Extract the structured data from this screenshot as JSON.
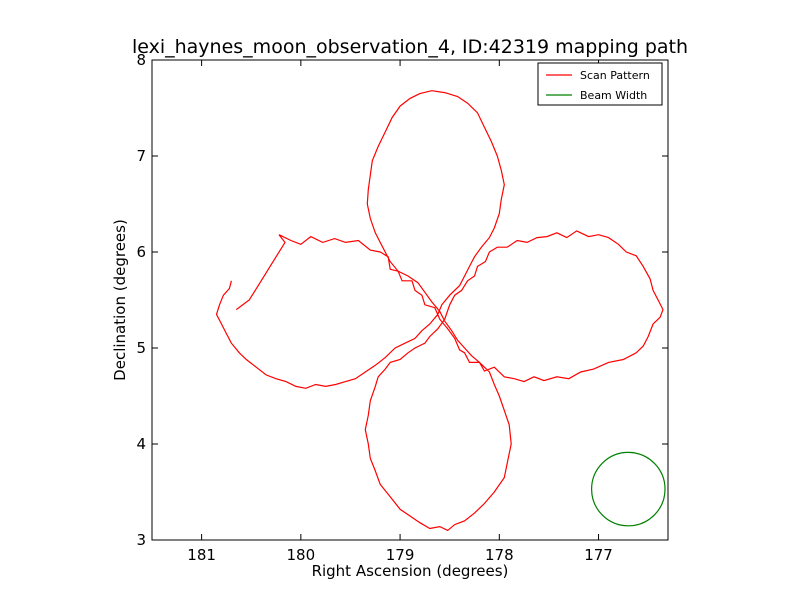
{
  "chart_data": {
    "type": "line",
    "title": "lexi_haynes_moon_observation_4, ID:42319 mapping path",
    "xlabel": "Right Ascension (degrees)",
    "ylabel": "Declination (degrees)",
    "xlim": [
      181.5,
      176.3
    ],
    "ylim": [
      3,
      8
    ],
    "x_ticks": [
      181,
      180,
      179,
      178,
      177
    ],
    "y_ticks": [
      3,
      4,
      5,
      6,
      7,
      8
    ],
    "grid": false,
    "legend": {
      "placement": "top-right",
      "entries": [
        "Scan Pattern",
        "Beam Width"
      ]
    },
    "series": [
      {
        "name": "Scan Pattern",
        "color": "#ff0000",
        "points": [
          [
            180.65,
            5.4
          ],
          [
            180.52,
            5.5
          ],
          [
            180.4,
            5.7
          ],
          [
            180.28,
            5.9
          ],
          [
            180.16,
            6.1
          ],
          [
            180.22,
            6.18
          ],
          [
            180.1,
            6.12
          ],
          [
            180.0,
            6.08
          ],
          [
            179.9,
            6.16
          ],
          [
            179.78,
            6.1
          ],
          [
            179.66,
            6.14
          ],
          [
            179.55,
            6.1
          ],
          [
            179.42,
            6.12
          ],
          [
            179.3,
            6.02
          ],
          [
            179.2,
            6.0
          ],
          [
            179.12,
            5.95
          ],
          [
            179.1,
            5.82
          ],
          [
            179.02,
            5.8
          ],
          [
            178.98,
            5.7
          ],
          [
            178.88,
            5.7
          ],
          [
            178.85,
            5.6
          ],
          [
            178.78,
            5.55
          ],
          [
            178.75,
            5.45
          ],
          [
            178.65,
            5.42
          ],
          [
            178.6,
            5.3
          ],
          [
            178.52,
            5.2
          ],
          [
            178.45,
            5.1
          ],
          [
            178.4,
            4.98
          ],
          [
            178.35,
            4.95
          ],
          [
            178.3,
            4.85
          ],
          [
            178.2,
            4.85
          ],
          [
            178.15,
            4.76
          ],
          [
            178.05,
            4.8
          ],
          [
            177.95,
            4.7
          ],
          [
            177.85,
            4.68
          ],
          [
            177.75,
            4.65
          ],
          [
            177.65,
            4.7
          ],
          [
            177.55,
            4.66
          ],
          [
            177.42,
            4.7
          ],
          [
            177.3,
            4.68
          ],
          [
            177.18,
            4.75
          ],
          [
            177.05,
            4.78
          ],
          [
            176.9,
            4.85
          ],
          [
            176.75,
            4.88
          ],
          [
            176.62,
            4.95
          ],
          [
            176.55,
            5.02
          ],
          [
            176.5,
            5.12
          ],
          [
            176.45,
            5.25
          ],
          [
            176.38,
            5.32
          ],
          [
            176.35,
            5.4
          ],
          [
            176.4,
            5.5
          ],
          [
            176.45,
            5.6
          ],
          [
            176.48,
            5.72
          ],
          [
            176.55,
            5.85
          ],
          [
            176.62,
            5.96
          ],
          [
            176.72,
            6.0
          ],
          [
            176.8,
            6.08
          ],
          [
            176.9,
            6.15
          ],
          [
            177.0,
            6.18
          ],
          [
            177.1,
            6.16
          ],
          [
            177.22,
            6.22
          ],
          [
            177.32,
            6.15
          ],
          [
            177.42,
            6.2
          ],
          [
            177.52,
            6.16
          ],
          [
            177.62,
            6.15
          ],
          [
            177.72,
            6.1
          ],
          [
            177.82,
            6.12
          ],
          [
            177.92,
            6.05
          ],
          [
            178.02,
            6.05
          ],
          [
            178.1,
            6.0
          ],
          [
            178.14,
            5.9
          ],
          [
            178.22,
            5.85
          ],
          [
            178.25,
            5.75
          ],
          [
            178.32,
            5.7
          ],
          [
            178.38,
            5.6
          ],
          [
            178.45,
            5.55
          ],
          [
            178.5,
            5.45
          ],
          [
            178.55,
            5.3
          ],
          [
            178.62,
            5.2
          ],
          [
            178.7,
            5.12
          ],
          [
            178.75,
            5.05
          ],
          [
            178.85,
            5.0
          ],
          [
            178.92,
            4.95
          ],
          [
            179.0,
            4.88
          ],
          [
            179.1,
            4.85
          ],
          [
            179.15,
            4.78
          ],
          [
            179.22,
            4.7
          ],
          [
            179.25,
            4.6
          ],
          [
            179.3,
            4.45
          ],
          [
            179.32,
            4.3
          ],
          [
            179.35,
            4.15
          ],
          [
            179.32,
            4.0
          ],
          [
            179.3,
            3.85
          ],
          [
            179.25,
            3.72
          ],
          [
            179.2,
            3.58
          ],
          [
            179.1,
            3.45
          ],
          [
            179.0,
            3.32
          ],
          [
            178.9,
            3.25
          ],
          [
            178.8,
            3.18
          ],
          [
            178.7,
            3.12
          ],
          [
            178.6,
            3.14
          ],
          [
            178.52,
            3.1
          ],
          [
            178.45,
            3.16
          ],
          [
            178.35,
            3.2
          ],
          [
            178.25,
            3.28
          ],
          [
            178.15,
            3.38
          ],
          [
            178.05,
            3.5
          ],
          [
            177.95,
            3.65
          ],
          [
            177.92,
            3.8
          ],
          [
            177.88,
            4.0
          ],
          [
            177.9,
            4.2
          ],
          [
            177.95,
            4.35
          ],
          [
            178.0,
            4.5
          ],
          [
            178.05,
            4.62
          ],
          [
            178.1,
            4.75
          ],
          [
            178.2,
            4.85
          ],
          [
            178.28,
            4.92
          ],
          [
            178.35,
            5.0
          ],
          [
            178.42,
            5.08
          ],
          [
            178.48,
            5.18
          ],
          [
            178.55,
            5.28
          ],
          [
            178.6,
            5.38
          ],
          [
            178.68,
            5.48
          ],
          [
            178.75,
            5.58
          ],
          [
            178.82,
            5.68
          ],
          [
            178.92,
            5.75
          ],
          [
            179.02,
            5.8
          ],
          [
            179.1,
            5.9
          ],
          [
            179.15,
            6.0
          ],
          [
            179.2,
            6.1
          ],
          [
            179.25,
            6.2
          ],
          [
            179.3,
            6.35
          ],
          [
            179.33,
            6.5
          ],
          [
            179.32,
            6.65
          ],
          [
            179.3,
            6.8
          ],
          [
            179.28,
            6.95
          ],
          [
            179.22,
            7.1
          ],
          [
            179.15,
            7.25
          ],
          [
            179.08,
            7.4
          ],
          [
            179.0,
            7.52
          ],
          [
            178.9,
            7.6
          ],
          [
            178.8,
            7.65
          ],
          [
            178.68,
            7.68
          ],
          [
            178.55,
            7.66
          ],
          [
            178.42,
            7.62
          ],
          [
            178.32,
            7.55
          ],
          [
            178.22,
            7.45
          ],
          [
            178.15,
            7.3
          ],
          [
            178.08,
            7.15
          ],
          [
            178.02,
            7.0
          ],
          [
            177.98,
            6.85
          ],
          [
            177.95,
            6.7
          ],
          [
            177.98,
            6.55
          ],
          [
            178.0,
            6.4
          ],
          [
            178.05,
            6.25
          ],
          [
            178.1,
            6.15
          ],
          [
            178.18,
            6.05
          ],
          [
            178.25,
            5.95
          ],
          [
            178.3,
            5.85
          ],
          [
            178.35,
            5.75
          ],
          [
            178.4,
            5.65
          ],
          [
            178.5,
            5.55
          ],
          [
            178.58,
            5.45
          ],
          [
            178.62,
            5.35
          ],
          [
            178.7,
            5.25
          ],
          [
            178.78,
            5.18
          ],
          [
            178.85,
            5.1
          ],
          [
            178.95,
            5.05
          ],
          [
            179.05,
            5.0
          ],
          [
            179.15,
            4.9
          ],
          [
            179.25,
            4.82
          ],
          [
            179.35,
            4.75
          ],
          [
            179.45,
            4.68
          ],
          [
            179.55,
            4.65
          ],
          [
            179.65,
            4.62
          ],
          [
            179.75,
            4.6
          ],
          [
            179.85,
            4.62
          ],
          [
            179.95,
            4.58
          ],
          [
            180.05,
            4.6
          ],
          [
            180.15,
            4.65
          ],
          [
            180.25,
            4.68
          ],
          [
            180.35,
            4.72
          ],
          [
            180.45,
            4.8
          ],
          [
            180.55,
            4.88
          ],
          [
            180.62,
            4.95
          ],
          [
            180.7,
            5.05
          ],
          [
            180.75,
            5.15
          ],
          [
            180.8,
            5.25
          ],
          [
            180.85,
            5.35
          ],
          [
            180.82,
            5.45
          ],
          [
            180.78,
            5.55
          ],
          [
            180.72,
            5.62
          ],
          [
            180.7,
            5.7
          ]
        ]
      }
    ],
    "beam_width": {
      "name": "Beam Width",
      "color": "#008000",
      "center": [
        176.7,
        3.53
      ],
      "radius_deg": 0.37
    }
  }
}
